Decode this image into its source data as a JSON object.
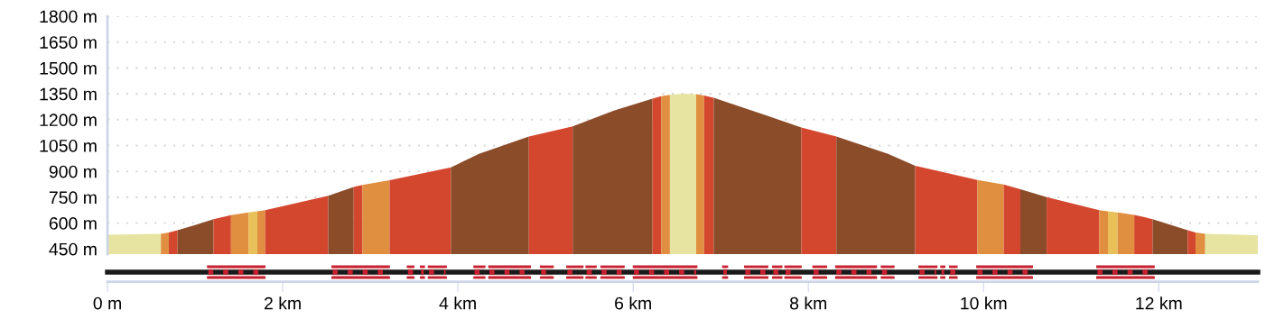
{
  "chart_data": {
    "type": "area",
    "xlim": [
      0,
      13.13
    ],
    "ylim": [
      420,
      1800
    ],
    "xticks": [
      {
        "value": 0,
        "label": "0 m"
      },
      {
        "value": 2,
        "label": "2 km"
      },
      {
        "value": 4,
        "label": "4 km"
      },
      {
        "value": 6,
        "label": "6 km"
      },
      {
        "value": 8,
        "label": "8 km"
      },
      {
        "value": 10,
        "label": "10 km"
      },
      {
        "value": 12,
        "label": "12 km"
      }
    ],
    "yticks": [
      {
        "value": 450,
        "label": "450 m"
      },
      {
        "value": 600,
        "label": "600 m"
      },
      {
        "value": 750,
        "label": "750 m"
      },
      {
        "value": 900,
        "label": "900 m"
      },
      {
        "value": 1050,
        "label": "1050 m"
      },
      {
        "value": 1200,
        "label": "1200 m"
      },
      {
        "value": 1350,
        "label": "1350 m"
      },
      {
        "value": 1500,
        "label": "1500 m"
      },
      {
        "value": 1650,
        "label": "1650 m"
      },
      {
        "value": 1800,
        "label": "1800 m"
      }
    ],
    "grid": "y",
    "series": [
      {
        "color": "#e6e4a0",
        "x": [
          0,
          0.61
        ],
        "values": [
          533,
          538
        ]
      },
      {
        "color": "#e08e40",
        "x": [
          0.61,
          0.7
        ],
        "values": [
          538,
          545
        ]
      },
      {
        "color": "#d4472f",
        "x": [
          0.7,
          0.8
        ],
        "values": [
          545,
          559
        ]
      },
      {
        "color": "#8b4c2a",
        "x": [
          0.8,
          1.0,
          1.21
        ],
        "values": [
          559,
          589,
          622
        ]
      },
      {
        "color": "#d4472f",
        "x": [
          1.21,
          1.41
        ],
        "values": [
          622,
          646
        ]
      },
      {
        "color": "#e08e40",
        "x": [
          1.41,
          1.61
        ],
        "values": [
          646,
          662
        ]
      },
      {
        "color": "#e8c05a",
        "x": [
          1.61,
          1.71
        ],
        "values": [
          662,
          668
        ]
      },
      {
        "color": "#e08e40",
        "x": [
          1.71,
          1.8
        ],
        "values": [
          668,
          675
        ]
      },
      {
        "color": "#d4472f",
        "x": [
          1.8,
          2.52
        ],
        "values": [
          675,
          758
        ]
      },
      {
        "color": "#8b4c2a",
        "x": [
          2.52,
          2.81
        ],
        "values": [
          758,
          810
        ]
      },
      {
        "color": "#d4472f",
        "x": [
          2.81,
          2.91
        ],
        "values": [
          810,
          821
        ]
      },
      {
        "color": "#e08e40",
        "x": [
          2.91,
          3.22
        ],
        "values": [
          821,
          849
        ]
      },
      {
        "color": "#d4472f",
        "x": [
          3.22,
          3.92
        ],
        "values": [
          849,
          923
        ]
      },
      {
        "color": "#8b4c2a",
        "x": [
          3.92,
          4.24,
          4.81
        ],
        "values": [
          923,
          1001,
          1102
        ]
      },
      {
        "color": "#d4472f",
        "x": [
          4.81,
          5.31
        ],
        "values": [
          1102,
          1161
        ]
      },
      {
        "color": "#8b4c2a",
        "x": [
          5.31,
          5.78,
          6.22
        ],
        "values": [
          1161,
          1253,
          1322
        ]
      },
      {
        "color": "#d4472f",
        "x": [
          6.22,
          6.32
        ],
        "values": [
          1322,
          1336
        ]
      },
      {
        "color": "#e08e40",
        "x": [
          6.32,
          6.42
        ],
        "values": [
          1336,
          1344
        ]
      },
      {
        "color": "#e6e4a0",
        "x": [
          6.42,
          6.57,
          6.72
        ],
        "values": [
          1344,
          1350,
          1348
        ]
      },
      {
        "color": "#e08e40",
        "x": [
          6.72,
          6.81
        ],
        "values": [
          1348,
          1340
        ]
      },
      {
        "color": "#d4472f",
        "x": [
          6.81,
          6.92
        ],
        "values": [
          1340,
          1327
        ]
      },
      {
        "color": "#8b4c2a",
        "x": [
          6.92,
          7.51,
          7.92
        ],
        "values": [
          1327,
          1226,
          1154
        ]
      },
      {
        "color": "#d4472f",
        "x": [
          7.92,
          8.32
        ],
        "values": [
          1154,
          1102
        ]
      },
      {
        "color": "#8b4c2a",
        "x": [
          8.32,
          8.91,
          9.22
        ],
        "values": [
          1102,
          1001,
          932
        ]
      },
      {
        "color": "#d4472f",
        "x": [
          9.22,
          9.93
        ],
        "values": [
          932,
          850
        ]
      },
      {
        "color": "#e08e40",
        "x": [
          9.93,
          10.23
        ],
        "values": [
          850,
          824
        ]
      },
      {
        "color": "#d4472f",
        "x": [
          10.23,
          10.42
        ],
        "values": [
          824,
          797
        ]
      },
      {
        "color": "#8b4c2a",
        "x": [
          10.42,
          10.72
        ],
        "values": [
          797,
          750
        ]
      },
      {
        "color": "#d4472f",
        "x": [
          10.72,
          11.32
        ],
        "values": [
          750,
          675
        ]
      },
      {
        "color": "#e08e40",
        "x": [
          11.32,
          11.42
        ],
        "values": [
          675,
          668
        ]
      },
      {
        "color": "#e8c05a",
        "x": [
          11.42,
          11.53
        ],
        "values": [
          668,
          662
        ]
      },
      {
        "color": "#e08e40",
        "x": [
          11.53,
          11.72
        ],
        "values": [
          662,
          648
        ]
      },
      {
        "color": "#d4472f",
        "x": [
          11.72,
          11.93
        ],
        "values": [
          648,
          623
        ]
      },
      {
        "color": "#8b4c2a",
        "x": [
          11.93,
          12.33
        ],
        "values": [
          623,
          559
        ]
      },
      {
        "color": "#d4472f",
        "x": [
          12.33,
          12.42
        ],
        "values": [
          559,
          545
        ]
      },
      {
        "color": "#e08e40",
        "x": [
          12.42,
          12.53
        ],
        "values": [
          545,
          538
        ]
      },
      {
        "color": "#e6e4a0",
        "x": [
          12.53,
          13.13
        ],
        "values": [
          538,
          530
        ]
      }
    ]
  }
}
